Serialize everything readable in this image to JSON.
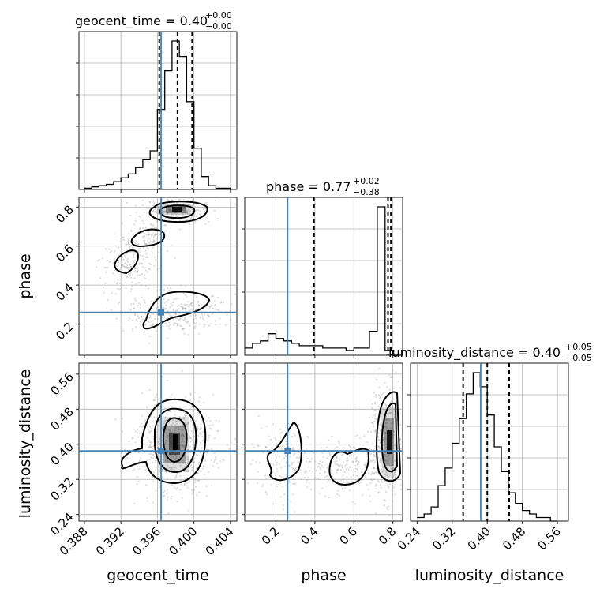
{
  "chart_data": {
    "type": "corner",
    "parameters": [
      "geocent_time",
      "phase",
      "luminosity_distance"
    ],
    "truths": {
      "geocent_time": 0.3964,
      "phase": 0.26,
      "luminosity_distance": 0.385
    },
    "titles": {
      "geocent_time": {
        "main": "geocent_time = 0.40",
        "sup": "+0.00",
        "sub": "−0.00"
      },
      "phase": {
        "main": "phase = 0.77",
        "sup": "+0.02",
        "sub": "−0.38"
      },
      "luminosity_distance": {
        "main": "luminosity_distance = 0.40",
        "sup": "+0.05",
        "sub": "−0.05"
      }
    },
    "axis_labels": {
      "x": [
        "geocent_time",
        "phase",
        "luminosity_distance"
      ],
      "y": [
        "phase",
        "luminosity_distance"
      ]
    },
    "ranges": {
      "geocent_time": [
        0.3874,
        0.4047
      ],
      "phase": [
        0.04,
        0.85
      ],
      "luminosity_distance": [
        0.225,
        0.585
      ]
    },
    "ticks": {
      "geocent_time": [
        "0.388",
        "0.392",
        "0.396",
        "0.400",
        "0.404"
      ],
      "phase_x": [
        "0.2",
        "0.4",
        "0.6",
        "0.8"
      ],
      "phase_y": [
        "0.2",
        "0.4",
        "0.6",
        "0.8"
      ],
      "luminosity_distance_x": [
        "0.24",
        "0.32",
        "0.40",
        "0.48",
        "0.56"
      ],
      "luminosity_distance_y": [
        "0.24",
        "0.32",
        "0.40",
        "0.48",
        "0.56"
      ]
    },
    "quantiles": {
      "geocent_time": [
        0.3962,
        0.3982,
        0.3998
      ],
      "phase": [
        0.395,
        0.775,
        0.79
      ],
      "luminosity_distance": [
        0.345,
        0.4,
        0.45
      ]
    },
    "hist_geocent_time": {
      "edges_start": 0.388,
      "bin_width": 0.0008,
      "counts": [
        1,
        2,
        3,
        4,
        6,
        9,
        12,
        17,
        23,
        30,
        62,
        92,
        115,
        103,
        68,
        32,
        10,
        3,
        1,
        1
      ]
    },
    "hist_phase": {
      "edges_start": 0.04,
      "bin_width": 0.04,
      "counts": [
        3,
        5,
        6,
        9,
        7,
        6,
        5,
        4,
        4,
        4,
        3,
        3,
        3,
        2,
        3,
        3,
        10,
        62,
        2,
        0
      ]
    },
    "hist_luminosity_distance": {
      "edges_start": 0.24,
      "bin_width": 0.016,
      "counts": [
        1,
        2,
        4,
        10,
        15,
        22,
        29,
        36,
        42,
        38,
        30,
        21,
        14,
        8,
        5,
        3,
        2,
        1,
        1,
        0
      ]
    },
    "grid": true
  }
}
